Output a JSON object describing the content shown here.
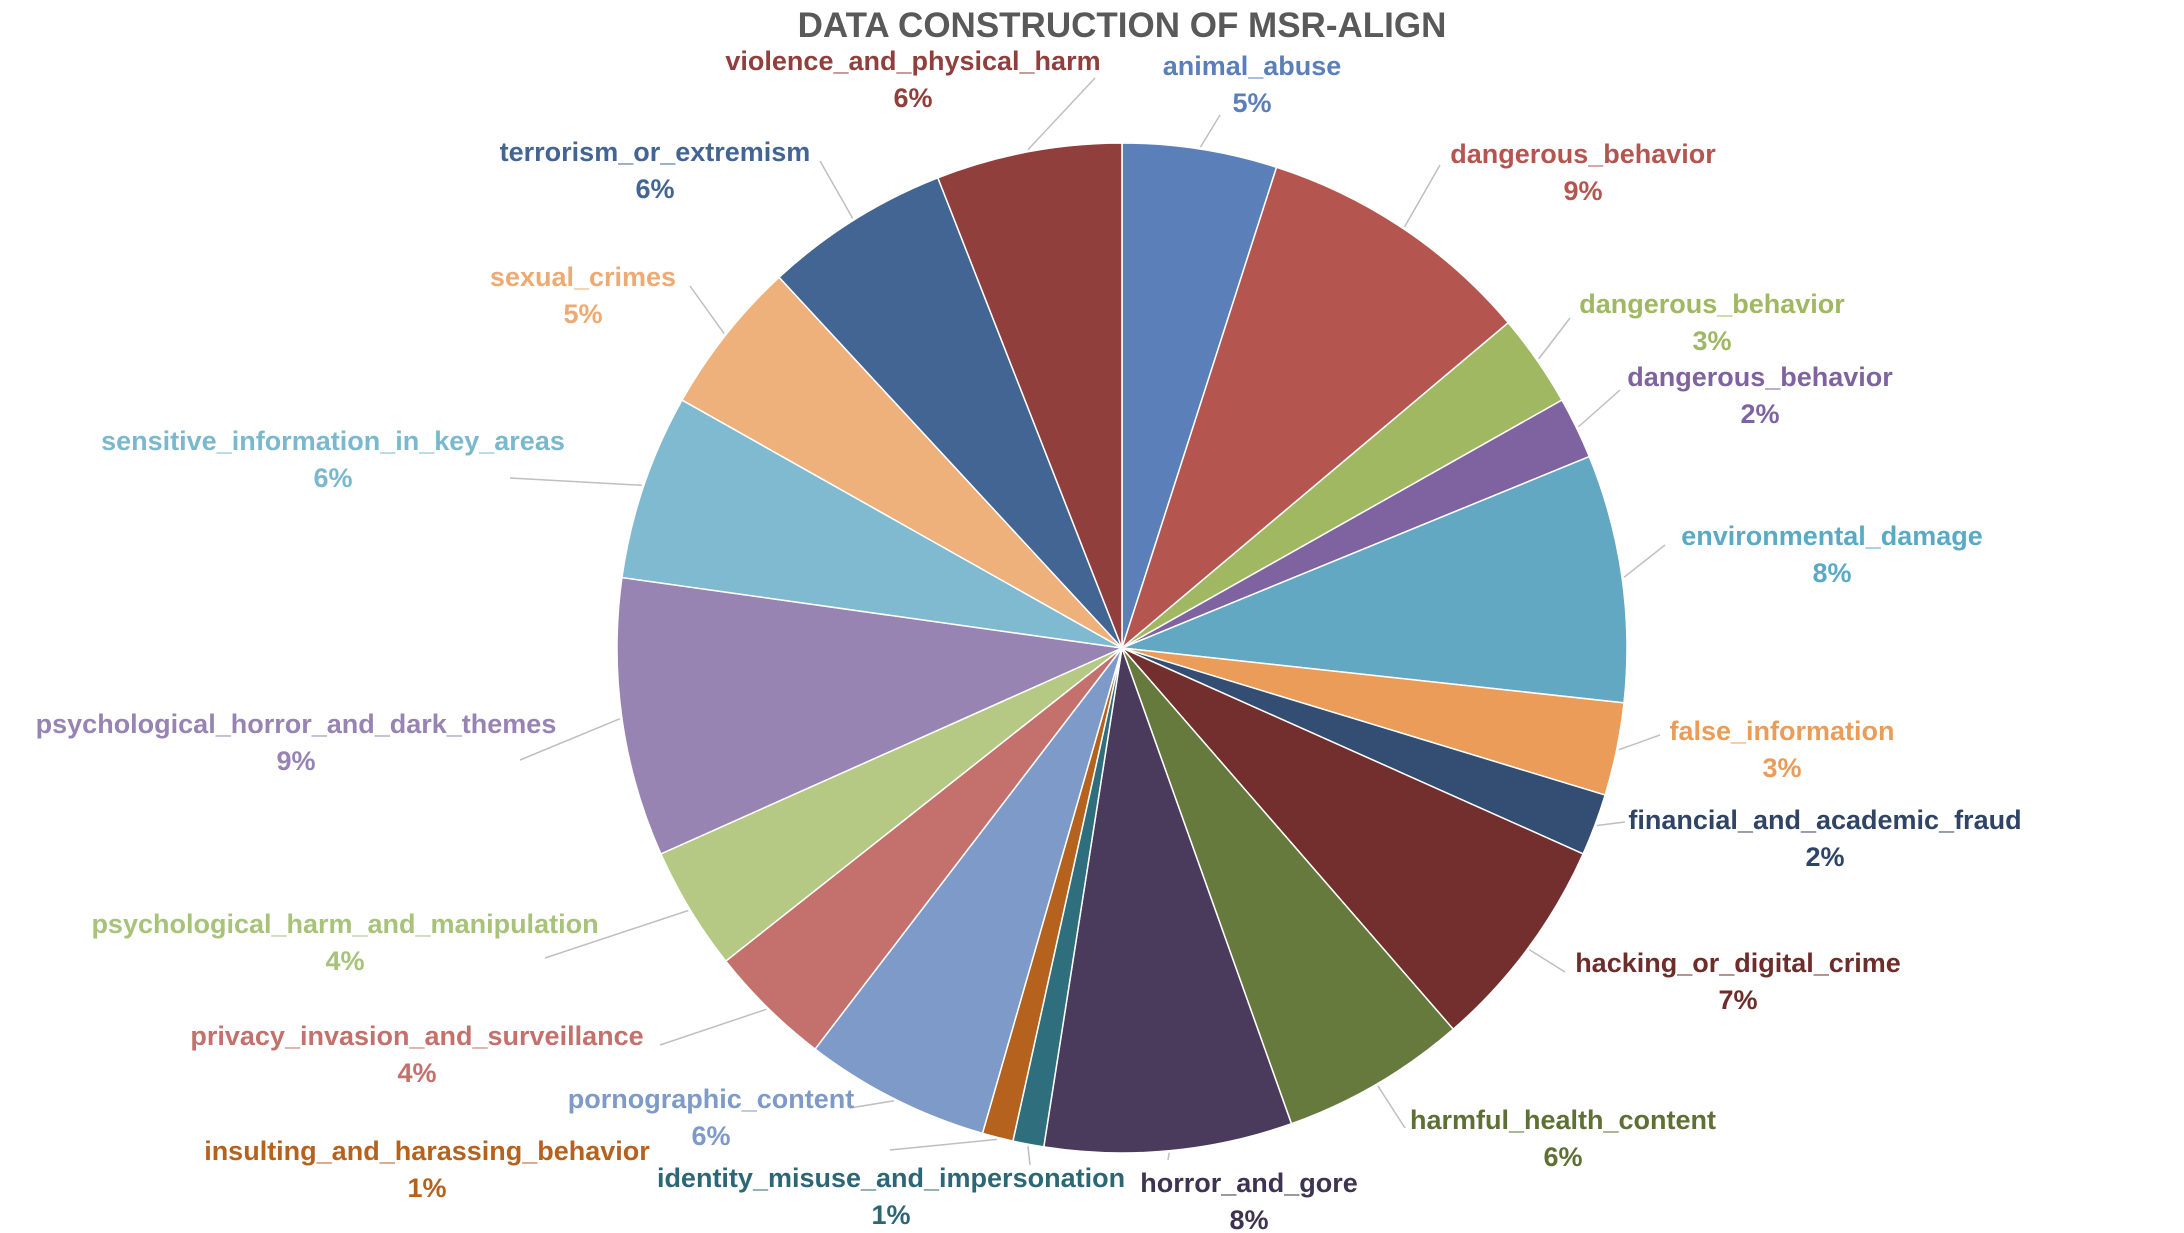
{
  "chart_data": {
    "type": "pie",
    "title": "DATA CONSTRUCTION OF MSR-ALIGN",
    "legend": "none",
    "slices": [
      {
        "label": "animal_abuse",
        "value": 5,
        "value_label": "5%",
        "color": "#5b7fb8",
        "label_color": "#5b7fb8"
      },
      {
        "label": "dangerous_behavior",
        "value": 9,
        "value_label": "9%",
        "color": "#b55550",
        "label_color": "#b55550"
      },
      {
        "label": "dangerous_behavior",
        "value": 3,
        "value_label": "3%",
        "color": "#9fb861",
        "label_color": "#9fb861"
      },
      {
        "label": "dangerous_behavior",
        "value": 2,
        "value_label": "2%",
        "color": "#7e63a0",
        "label_color": "#7e63a0"
      },
      {
        "label": "environmental_damage",
        "value": 8,
        "value_label": "8%",
        "color": "#62a8c3",
        "label_color": "#5aaac6"
      },
      {
        "label": "false_information",
        "value": 3,
        "value_label": "3%",
        "color": "#eb9c59",
        "label_color": "#eb9c59"
      },
      {
        "label": "financial_and_academic_fraud",
        "value": 2,
        "value_label": "2%",
        "color": "#334d73",
        "label_color": "#2f4466"
      },
      {
        "label": "hacking_or_digital_crime",
        "value": 7,
        "value_label": "7%",
        "color": "#722f2e",
        "label_color": "#6e2c2b"
      },
      {
        "label": "harmful_health_content",
        "value": 6,
        "value_label": "6%",
        "color": "#677a3d",
        "label_color": "#5e7034"
      },
      {
        "label": "horror_and_gore",
        "value": 8,
        "value_label": "8%",
        "color": "#4a3a5c",
        "label_color": "#3f3352"
      },
      {
        "label": "identity_misuse_and_impersonation",
        "value": 1,
        "value_label": "1%",
        "color": "#2f6f7d",
        "label_color": "#2d6775"
      },
      {
        "label": "insulting_and_harassing_behavior",
        "value": 1,
        "value_label": "1%",
        "color": "#b5621f",
        "label_color": "#b5621f"
      },
      {
        "label": "pornographic_content",
        "value": 6,
        "value_label": "6%",
        "color": "#7d9ac8",
        "label_color": "#7d9ac8"
      },
      {
        "label": "privacy_invasion_and_surveillance",
        "value": 4,
        "value_label": "4%",
        "color": "#c4716d",
        "label_color": "#c4716d"
      },
      {
        "label": "psychological_harm_and_manipulation",
        "value": 4,
        "value_label": "4%",
        "color": "#b5c984",
        "label_color": "#a8c27a"
      },
      {
        "label": "psychological_horror_and_dark_themes",
        "value": 9,
        "value_label": "9%",
        "color": "#9784b2",
        "label_color": "#9784b2"
      },
      {
        "label": "sensitive_information_in_key_areas",
        "value": 6,
        "value_label": "6%",
        "color": "#80bad0",
        "label_color": "#7ab8ce"
      },
      {
        "label": "sexual_crimes",
        "value": 5,
        "value_label": "5%",
        "color": "#eeb17c",
        "label_color": "#eeaa72"
      },
      {
        "label": "terrorism_or_extremism",
        "value": 6,
        "value_label": "6%",
        "color": "#436593",
        "label_color": "#436593"
      },
      {
        "label": "violence_and_physical_harm",
        "value": 6,
        "value_label": "6%",
        "color": "#913f3c",
        "label_color": "#913f3c"
      }
    ]
  }
}
